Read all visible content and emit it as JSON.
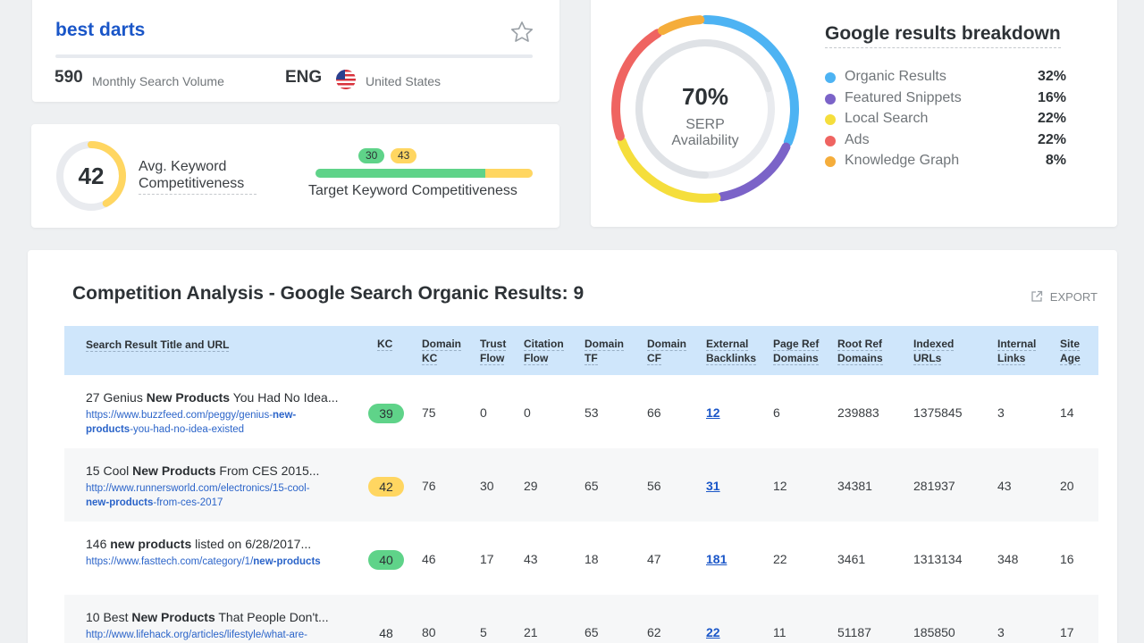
{
  "keyword": {
    "title": "best darts",
    "volume": "590",
    "volume_label": "Monthly Search Volume",
    "language": "ENG",
    "country": "United States"
  },
  "competitiveness": {
    "avg_value": "42",
    "avg_fraction": 0.42,
    "avg_label": "Avg. Keyword Competitiveness",
    "range_low": "30",
    "range_high": "43",
    "target_label": "Target Keyword Competitiveness"
  },
  "serp": {
    "percent": "70%",
    "label_line1": "SERP",
    "label_line2": "Availability",
    "title": "Google results breakdown",
    "breakdown": [
      {
        "name": "Organic Results",
        "value": "32%",
        "fraction": 0.32,
        "color": "#4db3f3"
      },
      {
        "name": "Featured Snippets",
        "value": "16%",
        "fraction": 0.16,
        "color": "#7b63c8"
      },
      {
        "name": "Local Search",
        "value": "22%",
        "fraction": 0.22,
        "color": "#f5de3c"
      },
      {
        "name": "Ads",
        "value": "22%",
        "fraction": 0.22,
        "color": "#ef6461"
      },
      {
        "name": "Knowledge Graph",
        "value": "8%",
        "fraction": 0.08,
        "color": "#f5ad3b"
      }
    ]
  },
  "table": {
    "title": "Competition Analysis - Google Search Organic Results: 9",
    "export_label": "EXPORT",
    "headers": [
      "Search Result Title and URL",
      "KC",
      "Domain KC",
      "Trust Flow",
      "Citation Flow",
      "Domain TF",
      "Domain CF",
      "External Backlinks",
      "Page Ref Domains",
      "Root Ref Domains",
      "Indexed URLs",
      "Internal Links",
      "Site Age"
    ],
    "rows": [
      {
        "title_pre": "27 Genius ",
        "title_bold": "New Products",
        "title_post": " You Had No Idea...",
        "url_line1_pre": "https://www.buzzfeed.com/peggy/genius-",
        "url_line1_bold": "new-",
        "url_line2_bold": "products",
        "url_line2_post": "-you-had-no-idea-existed",
        "kc": "39",
        "kc_color": "#5fd389",
        "domain_kc": "75",
        "trust_flow": "0",
        "citation_flow": "0",
        "domain_tf": "53",
        "domain_cf": "66",
        "backlinks": "12",
        "page_ref": "6",
        "root_ref": "239883",
        "indexed": "1375845",
        "internal": "3",
        "age": "14"
      },
      {
        "title_pre": "15 Cool ",
        "title_bold": "New Products",
        "title_post": " From CES 2015...",
        "url_line1_pre": "http://www.runnersworld.com/electronics/15-cool-",
        "url_line1_bold": "",
        "url_line2_bold": "new-products",
        "url_line2_post": "-from-ces-2017",
        "kc": "42",
        "kc_color": "#ffd661",
        "domain_kc": "76",
        "trust_flow": "30",
        "citation_flow": "29",
        "domain_tf": "65",
        "domain_cf": "56",
        "backlinks": "31",
        "page_ref": "12",
        "root_ref": "34381",
        "indexed": "281937",
        "internal": "43",
        "age": "20"
      },
      {
        "title_pre": "146 ",
        "title_bold": "new products",
        "title_post": " listed on 6/28/2017...",
        "url_line1_pre": "https://www.fasttech.com/category/1/",
        "url_line1_bold": "new-products",
        "url_line2_bold": "",
        "url_line2_post": "",
        "kc": "40",
        "kc_color": "#5fd389",
        "domain_kc": "46",
        "trust_flow": "17",
        "citation_flow": "43",
        "domain_tf": "18",
        "domain_cf": "47",
        "backlinks": "181",
        "page_ref": "22",
        "root_ref": "3461",
        "indexed": "1313134",
        "internal": "348",
        "age": "16"
      },
      {
        "title_pre": "10 Best ",
        "title_bold": "New Products",
        "title_post": " That People Don't...",
        "url_line1_pre": "http://www.lifehack.org/articles/lifestyle/what-are-",
        "url_line1_bold": "",
        "url_line2_bold": "",
        "url_line2_post": "",
        "kc": "48",
        "kc_color": "",
        "domain_kc": "80",
        "trust_flow": "5",
        "citation_flow": "21",
        "domain_tf": "65",
        "domain_cf": "62",
        "backlinks": "22",
        "page_ref": "11",
        "root_ref": "51187",
        "indexed": "185850",
        "internal": "3",
        "age": "17"
      }
    ]
  }
}
